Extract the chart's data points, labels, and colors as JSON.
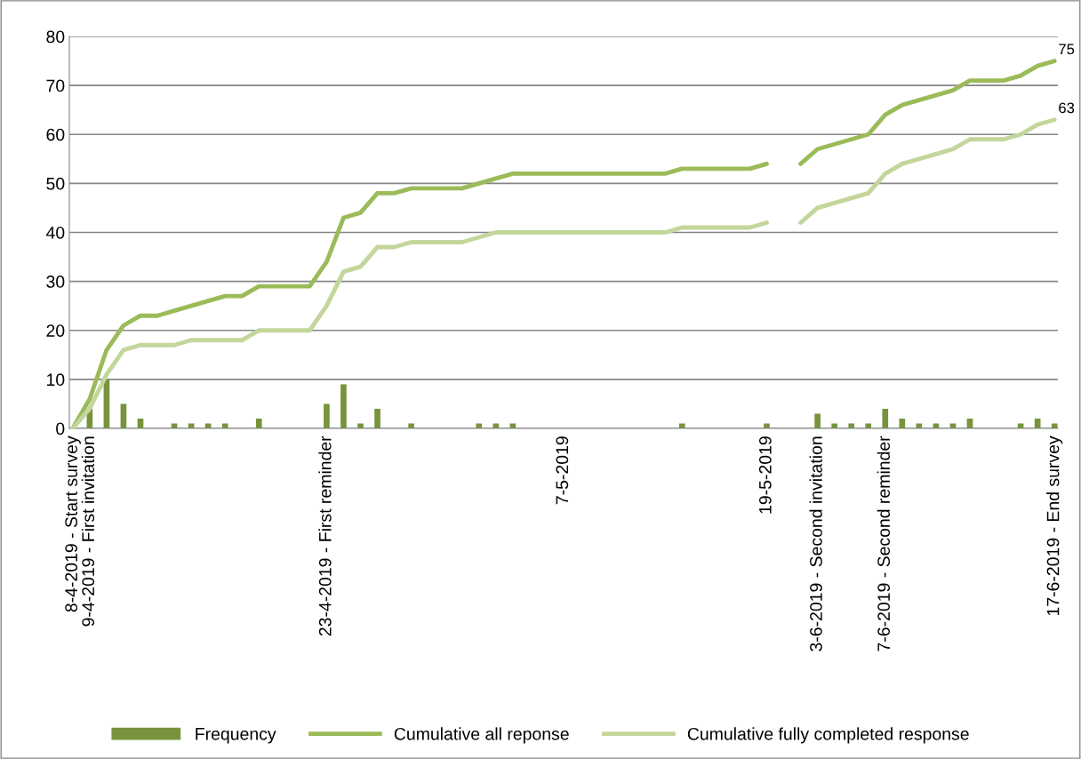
{
  "chart_data": {
    "type": "line",
    "categories": [
      "8-4-2019 - Start survey",
      "9-4-2019 - First invitation",
      null,
      null,
      null,
      null,
      null,
      null,
      null,
      null,
      null,
      null,
      null,
      null,
      null,
      "23-4-2019 - First reminder",
      null,
      null,
      null,
      null,
      null,
      null,
      null,
      null,
      null,
      null,
      null,
      null,
      null,
      "7-5-2019",
      null,
      null,
      null,
      null,
      null,
      null,
      null,
      null,
      null,
      null,
      null,
      "19-5-2019",
      null,
      null,
      "3-6-2019 - Second invitation",
      null,
      null,
      null,
      "7-6-2019 - Second reminder",
      null,
      null,
      null,
      null,
      null,
      null,
      null,
      null,
      null,
      "17-6-2019 - End survey"
    ],
    "series": [
      {
        "name": "Frequency",
        "type": "bar",
        "color": "#77933c",
        "values": [
          0,
          4,
          10,
          5,
          2,
          0,
          1,
          1,
          1,
          1,
          0,
          2,
          0,
          0,
          0,
          5,
          9,
          1,
          4,
          0,
          1,
          0,
          0,
          0,
          1,
          1,
          1,
          0,
          0,
          0,
          0,
          0,
          0,
          0,
          0,
          0,
          1,
          0,
          0,
          0,
          0,
          1,
          0,
          0,
          3,
          1,
          1,
          1,
          4,
          2,
          1,
          1,
          1,
          2,
          0,
          0,
          1,
          2,
          1
        ]
      },
      {
        "name": "Cumulative all reponse",
        "color": "#9bbb59",
        "values": [
          0,
          6,
          16,
          21,
          23,
          23,
          24,
          25,
          26,
          27,
          27,
          29,
          29,
          29,
          29,
          34,
          43,
          44,
          48,
          48,
          49,
          49,
          49,
          49,
          50,
          51,
          52,
          52,
          52,
          52,
          52,
          52,
          52,
          52,
          52,
          52,
          53,
          53,
          53,
          53,
          53,
          54,
          null,
          54,
          57,
          58,
          59,
          60,
          64,
          66,
          67,
          68,
          69,
          71,
          71,
          71,
          72,
          74,
          75
        ],
        "value_labels": [
          null,
          null,
          null,
          null,
          null,
          null,
          null,
          null,
          null,
          null,
          null,
          null,
          null,
          null,
          null,
          null,
          null,
          null,
          null,
          null,
          null,
          null,
          null,
          null,
          null,
          null,
          null,
          null,
          null,
          null,
          null,
          null,
          null,
          null,
          null,
          null,
          null,
          null,
          null,
          null,
          null,
          null,
          null,
          null,
          null,
          null,
          null,
          null,
          null,
          null,
          null,
          null,
          null,
          null,
          null,
          null,
          null,
          null,
          "75"
        ]
      },
      {
        "name": "Cumulative fully completed response",
        "color": "#c3d69b",
        "values": [
          0,
          4,
          11,
          16,
          17,
          17,
          17,
          18,
          18,
          18,
          18,
          20,
          20,
          20,
          20,
          25,
          32,
          33,
          37,
          37,
          38,
          38,
          38,
          38,
          39,
          40,
          40,
          40,
          40,
          40,
          40,
          40,
          40,
          40,
          40,
          40,
          41,
          41,
          41,
          41,
          41,
          42,
          null,
          42,
          45,
          46,
          47,
          48,
          52,
          54,
          55,
          56,
          57,
          59,
          59,
          59,
          60,
          62,
          63
        ],
        "value_labels": [
          null,
          null,
          null,
          null,
          null,
          null,
          null,
          null,
          null,
          null,
          null,
          null,
          null,
          null,
          null,
          null,
          null,
          null,
          null,
          null,
          null,
          null,
          null,
          null,
          null,
          null,
          null,
          null,
          null,
          null,
          null,
          null,
          null,
          null,
          null,
          null,
          null,
          null,
          null,
          null,
          null,
          null,
          null,
          null,
          null,
          null,
          null,
          null,
          null,
          null,
          null,
          null,
          null,
          null,
          null,
          null,
          null,
          null,
          "63"
        ]
      }
    ],
    "ylim": [
      0,
      80
    ],
    "yticks": [
      0,
      10,
      20,
      30,
      40,
      50,
      60,
      70,
      80
    ],
    "grid": "y",
    "legend": "bottom"
  }
}
